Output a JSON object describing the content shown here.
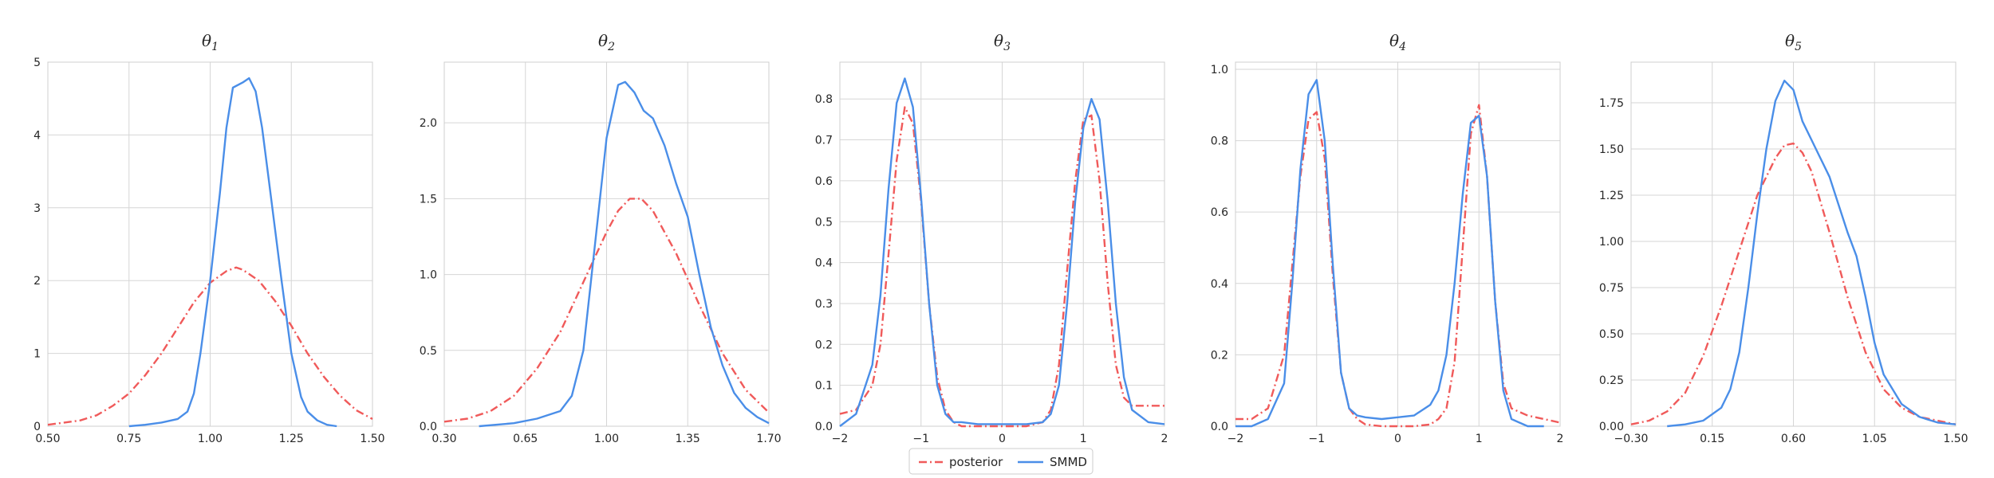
{
  "chart_data": [
    {
      "type": "line",
      "title": "θ",
      "title_sub": "1",
      "xlim": [
        0.5,
        1.5
      ],
      "ylim": [
        0,
        5
      ],
      "xticks": [
        0.5,
        0.75,
        1.0,
        1.25,
        1.5
      ],
      "xtick_labels": [
        "0.50",
        "0.75",
        "1.00",
        "1.25",
        "1.50"
      ],
      "yticks": [
        0,
        1,
        2,
        3,
        4,
        5
      ],
      "ytick_labels": [
        "0",
        "1",
        "2",
        "3",
        "4",
        "5"
      ],
      "grid": true,
      "series": [
        {
          "name": "posterior",
          "x": [
            0.5,
            0.6,
            0.65,
            0.7,
            0.75,
            0.8,
            0.85,
            0.9,
            0.95,
            1.0,
            1.05,
            1.08,
            1.1,
            1.15,
            1.2,
            1.25,
            1.3,
            1.35,
            1.4,
            1.45,
            1.5
          ],
          "y": [
            0.02,
            0.08,
            0.15,
            0.28,
            0.45,
            0.7,
            1.0,
            1.35,
            1.7,
            1.97,
            2.13,
            2.18,
            2.15,
            2.0,
            1.72,
            1.38,
            1.0,
            0.68,
            0.42,
            0.22,
            0.1
          ]
        },
        {
          "name": "SMMD",
          "x": [
            0.75,
            0.8,
            0.85,
            0.9,
            0.93,
            0.95,
            0.97,
            1.0,
            1.03,
            1.05,
            1.07,
            1.1,
            1.12,
            1.14,
            1.16,
            1.18,
            1.2,
            1.22,
            1.25,
            1.28,
            1.3,
            1.33,
            1.36,
            1.39
          ],
          "y": [
            0.0,
            0.02,
            0.05,
            0.1,
            0.2,
            0.45,
            1.0,
            2.0,
            3.2,
            4.1,
            4.65,
            4.72,
            4.78,
            4.6,
            4.1,
            3.4,
            2.7,
            2.0,
            1.0,
            0.4,
            0.2,
            0.08,
            0.02,
            0.0
          ]
        }
      ]
    },
    {
      "type": "line",
      "title": "θ",
      "title_sub": "2",
      "xlim": [
        0.3,
        1.7
      ],
      "ylim": [
        0,
        2.4
      ],
      "xticks": [
        0.3,
        0.65,
        1.0,
        1.35,
        1.7
      ],
      "xtick_labels": [
        "0.30",
        "0.65",
        "1.00",
        "1.35",
        "1.70"
      ],
      "yticks": [
        0,
        0.5,
        1.0,
        1.5,
        2.0
      ],
      "ytick_labels": [
        "0.0",
        "0.5",
        "1.0",
        "1.5",
        "2.0"
      ],
      "grid": true,
      "series": [
        {
          "name": "posterior",
          "x": [
            0.3,
            0.4,
            0.5,
            0.6,
            0.7,
            0.8,
            0.9,
            1.0,
            1.05,
            1.1,
            1.15,
            1.2,
            1.3,
            1.4,
            1.5,
            1.6,
            1.7
          ],
          "y": [
            0.03,
            0.05,
            0.1,
            0.2,
            0.38,
            0.62,
            0.95,
            1.28,
            1.42,
            1.5,
            1.5,
            1.42,
            1.14,
            0.8,
            0.48,
            0.24,
            0.09
          ]
        },
        {
          "name": "SMMD",
          "x": [
            0.45,
            0.6,
            0.7,
            0.8,
            0.85,
            0.9,
            0.95,
            1.0,
            1.05,
            1.08,
            1.12,
            1.16,
            1.2,
            1.25,
            1.3,
            1.35,
            1.4,
            1.45,
            1.5,
            1.55,
            1.6,
            1.65,
            1.7
          ],
          "y": [
            0.0,
            0.02,
            0.05,
            0.1,
            0.2,
            0.5,
            1.2,
            1.9,
            2.25,
            2.27,
            2.2,
            2.08,
            2.03,
            1.85,
            1.6,
            1.38,
            1.0,
            0.65,
            0.4,
            0.22,
            0.12,
            0.06,
            0.02
          ]
        }
      ]
    },
    {
      "type": "line",
      "title": "θ",
      "title_sub": "3",
      "xlim": [
        -2,
        2
      ],
      "ylim": [
        0,
        0.89
      ],
      "xticks": [
        -2,
        -1,
        0,
        1,
        2
      ],
      "xtick_labels": [
        "−2",
        "−1",
        "0",
        "1",
        "2"
      ],
      "yticks": [
        0,
        0.1,
        0.2,
        0.3,
        0.4,
        0.5,
        0.6,
        0.7,
        0.8
      ],
      "ytick_labels": [
        "0.0",
        "0.1",
        "0.2",
        "0.3",
        "0.4",
        "0.5",
        "0.6",
        "0.7",
        "0.8"
      ],
      "grid": true,
      "series": [
        {
          "name": "posterior",
          "x": [
            -2,
            -1.8,
            -1.6,
            -1.5,
            -1.4,
            -1.3,
            -1.2,
            -1.1,
            -1.0,
            -0.9,
            -0.8,
            -0.7,
            -0.6,
            -0.5,
            -0.3,
            0,
            0.3,
            0.5,
            0.6,
            0.7,
            0.8,
            0.9,
            1.0,
            1.1,
            1.2,
            1.3,
            1.4,
            1.5,
            1.6,
            1.8,
            2.0
          ],
          "y": [
            0.03,
            0.04,
            0.1,
            0.2,
            0.42,
            0.65,
            0.78,
            0.74,
            0.55,
            0.3,
            0.12,
            0.04,
            0.01,
            0.0,
            0.0,
            0.0,
            0.0,
            0.01,
            0.04,
            0.15,
            0.38,
            0.6,
            0.75,
            0.76,
            0.6,
            0.35,
            0.15,
            0.07,
            0.05,
            0.05,
            0.05
          ]
        },
        {
          "name": "SMMD",
          "x": [
            -2,
            -1.8,
            -1.6,
            -1.5,
            -1.4,
            -1.3,
            -1.2,
            -1.1,
            -1.0,
            -0.9,
            -0.8,
            -0.7,
            -0.6,
            -0.5,
            -0.3,
            0,
            0.3,
            0.5,
            0.6,
            0.7,
            0.8,
            0.9,
            1.0,
            1.1,
            1.2,
            1.3,
            1.4,
            1.5,
            1.6,
            1.8,
            2.0
          ],
          "y": [
            0.0,
            0.03,
            0.15,
            0.32,
            0.58,
            0.79,
            0.85,
            0.78,
            0.56,
            0.3,
            0.1,
            0.03,
            0.01,
            0.01,
            0.005,
            0.005,
            0.005,
            0.01,
            0.03,
            0.1,
            0.3,
            0.55,
            0.73,
            0.8,
            0.75,
            0.55,
            0.3,
            0.12,
            0.04,
            0.01,
            0.005
          ]
        }
      ]
    },
    {
      "type": "line",
      "title": "θ",
      "title_sub": "4",
      "xlim": [
        -2,
        2
      ],
      "ylim": [
        0,
        1.02
      ],
      "xticks": [
        -2,
        -1,
        0,
        1,
        2
      ],
      "xtick_labels": [
        "−2",
        "−1",
        "0",
        "1",
        "2"
      ],
      "yticks": [
        0,
        0.2,
        0.4,
        0.6,
        0.8,
        1.0
      ],
      "ytick_labels": [
        "0.0",
        "0.2",
        "0.4",
        "0.6",
        "0.8",
        "1.0"
      ],
      "grid": true,
      "series": [
        {
          "name": "posterior",
          "x": [
            -2,
            -1.8,
            -1.6,
            -1.4,
            -1.3,
            -1.2,
            -1.1,
            -1.0,
            -0.9,
            -0.8,
            -0.7,
            -0.6,
            -0.5,
            -0.4,
            -0.2,
            0,
            0.2,
            0.4,
            0.5,
            0.6,
            0.7,
            0.8,
            0.9,
            1.0,
            1.1,
            1.2,
            1.3,
            1.4,
            1.6,
            1.8,
            2.0
          ],
          "y": [
            0.02,
            0.02,
            0.05,
            0.2,
            0.45,
            0.7,
            0.86,
            0.88,
            0.75,
            0.42,
            0.15,
            0.05,
            0.02,
            0.005,
            0.0,
            0.0,
            0.0,
            0.005,
            0.02,
            0.05,
            0.18,
            0.5,
            0.82,
            0.9,
            0.7,
            0.35,
            0.12,
            0.05,
            0.03,
            0.02,
            0.01
          ]
        },
        {
          "name": "SMMD",
          "x": [
            -2,
            -1.8,
            -1.6,
            -1.4,
            -1.3,
            -1.2,
            -1.1,
            -1.0,
            -0.9,
            -0.8,
            -0.7,
            -0.6,
            -0.5,
            -0.4,
            -0.2,
            0,
            0.2,
            0.4,
            0.5,
            0.6,
            0.7,
            0.8,
            0.9,
            1.0,
            1.1,
            1.2,
            1.3,
            1.4,
            1.6,
            1.8
          ],
          "y": [
            0.0,
            0.0,
            0.02,
            0.12,
            0.4,
            0.72,
            0.93,
            0.97,
            0.8,
            0.45,
            0.15,
            0.05,
            0.03,
            0.025,
            0.02,
            0.025,
            0.03,
            0.06,
            0.1,
            0.2,
            0.4,
            0.65,
            0.85,
            0.87,
            0.7,
            0.35,
            0.1,
            0.02,
            0.0,
            0.0
          ]
        }
      ]
    },
    {
      "type": "line",
      "title": "θ",
      "title_sub": "5",
      "xlim": [
        -0.3,
        1.5
      ],
      "ylim": [
        0,
        1.97
      ],
      "xticks": [
        -0.3,
        0.15,
        0.6,
        1.05,
        1.5
      ],
      "xtick_labels": [
        "−0.30",
        "0.15",
        "0.60",
        "1.05",
        "1.50"
      ],
      "yticks": [
        0,
        0.25,
        0.5,
        0.75,
        1.0,
        1.25,
        1.5,
        1.75
      ],
      "ytick_labels": [
        "0.00",
        "0.25",
        "0.50",
        "0.75",
        "1.00",
        "1.25",
        "1.50",
        "1.75"
      ],
      "grid": true,
      "series": [
        {
          "name": "posterior",
          "x": [
            -0.3,
            -0.2,
            -0.1,
            0.0,
            0.1,
            0.2,
            0.3,
            0.4,
            0.5,
            0.55,
            0.6,
            0.65,
            0.7,
            0.8,
            0.9,
            1.0,
            1.1,
            1.2,
            1.3,
            1.4,
            1.5
          ],
          "y": [
            0.01,
            0.03,
            0.08,
            0.18,
            0.38,
            0.65,
            0.95,
            1.25,
            1.45,
            1.52,
            1.53,
            1.48,
            1.38,
            1.05,
            0.7,
            0.4,
            0.2,
            0.1,
            0.05,
            0.03,
            0.01
          ]
        },
        {
          "name": "SMMD",
          "x": [
            -0.1,
            0.0,
            0.1,
            0.2,
            0.25,
            0.3,
            0.35,
            0.4,
            0.45,
            0.5,
            0.55,
            0.6,
            0.65,
            0.7,
            0.75,
            0.8,
            0.85,
            0.9,
            0.95,
            1.0,
            1.05,
            1.1,
            1.2,
            1.3,
            1.4,
            1.5
          ],
          "y": [
            0.0,
            0.01,
            0.03,
            0.1,
            0.2,
            0.4,
            0.75,
            1.15,
            1.5,
            1.76,
            1.87,
            1.82,
            1.65,
            1.55,
            1.45,
            1.35,
            1.2,
            1.05,
            0.92,
            0.7,
            0.45,
            0.28,
            0.12,
            0.05,
            0.02,
            0.01
          ]
        }
      ]
    }
  ],
  "legend": {
    "placement": "bottom-center",
    "items": [
      {
        "label": "posterior",
        "color": "#f05a5a",
        "style": "dashdot"
      },
      {
        "label": "SMMD",
        "color": "#4a8ee8",
        "style": "solid"
      }
    ]
  }
}
